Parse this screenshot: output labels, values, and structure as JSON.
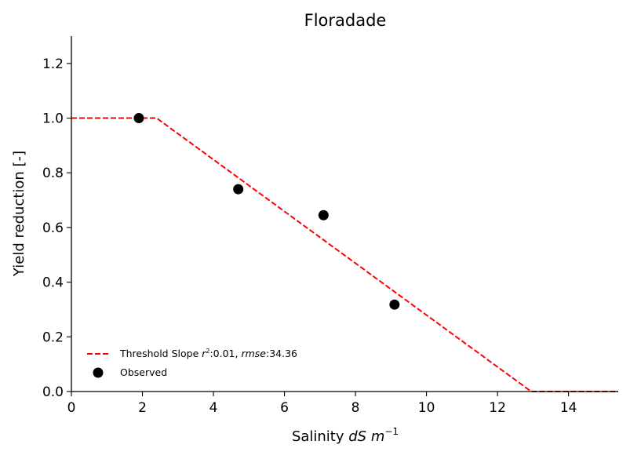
{
  "chart_data": {
    "type": "line",
    "title": "Floradade",
    "xlabel_prefix": "Salinity ",
    "xlabel_italic": "dS m",
    "xlabel_sup": "−1",
    "ylabel": "Yield reduction [-]",
    "xlim": [
      0,
      15.4
    ],
    "ylim": [
      0,
      1.3
    ],
    "xticks": [
      0,
      2,
      4,
      6,
      8,
      10,
      12,
      14
    ],
    "yticks": [
      0.0,
      0.2,
      0.4,
      0.6,
      0.8,
      1.0,
      1.2
    ],
    "xtick_labels": [
      "0",
      "2",
      "4",
      "6",
      "8",
      "10",
      "12",
      "14"
    ],
    "ytick_labels": [
      "0.0",
      "0.2",
      "0.4",
      "0.6",
      "0.8",
      "1.0",
      "1.2"
    ],
    "grid": false,
    "legend_position": "lower-left",
    "series": [
      {
        "name": "Threshold Slope",
        "style": "dashed-line",
        "color": "#ff0000",
        "x": [
          0,
          2.4,
          12.95,
          15.4
        ],
        "y": [
          1.0,
          1.0,
          0.0,
          0.0
        ]
      },
      {
        "name": "Observed",
        "style": "scatter",
        "color": "#000000",
        "x": [
          1.9,
          4.7,
          7.1,
          9.1
        ],
        "y": [
          1.0,
          0.74,
          0.645,
          0.318
        ]
      }
    ],
    "legend": {
      "fit_label_prefix": "Threshold Slope ",
      "fit_r2_symbol": "r",
      "fit_r2_sup": "2",
      "fit_r2_value": ":0.01, ",
      "fit_rmse_symbol": "rmse",
      "fit_rmse_value": ":34.36",
      "observed_label": "Observed"
    }
  }
}
